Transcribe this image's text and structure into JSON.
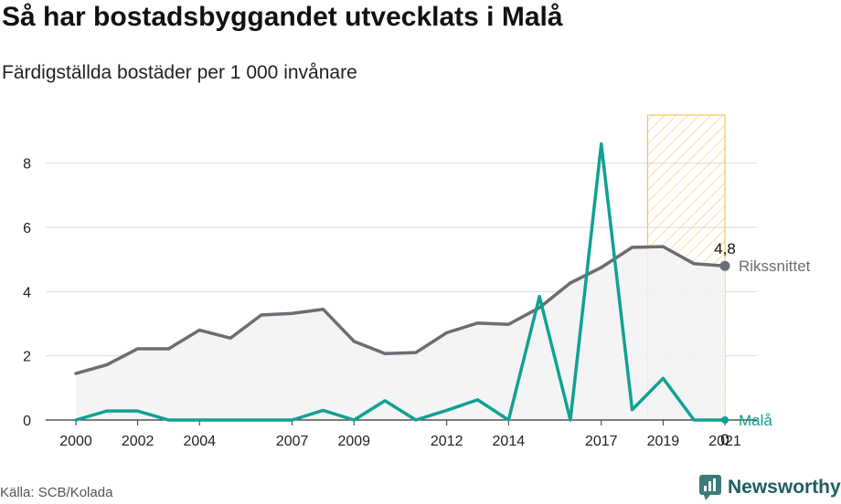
{
  "header": {
    "title": "Så har bostadsbyggandet utvecklats i Malå",
    "subtitle": "Färdigställda bostäder per 1 000 invånare"
  },
  "footer": {
    "source": "Källa: SCB/Kolada",
    "brand": "Newsworthy"
  },
  "colors": {
    "rikssnittet": "#6e6b73",
    "mala": "#11a193",
    "highlight": "#f5c45a",
    "area": "#f2f2f3",
    "grid": "#dddddd"
  },
  "chart_data": {
    "type": "line",
    "x": [
      2000,
      2001,
      2002,
      2003,
      2004,
      2005,
      2006,
      2007,
      2008,
      2009,
      2010,
      2011,
      2012,
      2013,
      2014,
      2015,
      2016,
      2017,
      2018,
      2019,
      2020,
      2021
    ],
    "x_tick_labels": [
      "2000",
      "2002",
      "2004",
      "2007",
      "2009",
      "2012",
      "2014",
      "2017",
      "2019",
      "2021"
    ],
    "y_ticks": [
      "0",
      "2",
      "4",
      "6",
      "8"
    ],
    "ylim": [
      0,
      9.5
    ],
    "grid": true,
    "highlight_range": [
      2018.5,
      2021
    ],
    "series": [
      {
        "name": "Rikssnittet",
        "end_value_label": "4,8",
        "values": [
          1.45,
          1.72,
          2.22,
          2.22,
          2.8,
          2.55,
          3.27,
          3.32,
          3.45,
          2.45,
          2.07,
          2.1,
          2.72,
          3.02,
          2.98,
          3.5,
          4.27,
          4.75,
          5.38,
          5.4,
          4.87,
          4.8
        ]
      },
      {
        "name": "Malå",
        "end_value_label": "0",
        "values": [
          0,
          0.28,
          0.28,
          0,
          0,
          0,
          0,
          0,
          0.3,
          0,
          0.6,
          0,
          0.3,
          0.63,
          0,
          3.85,
          0,
          8.6,
          0.32,
          1.3,
          0,
          0
        ]
      }
    ]
  }
}
